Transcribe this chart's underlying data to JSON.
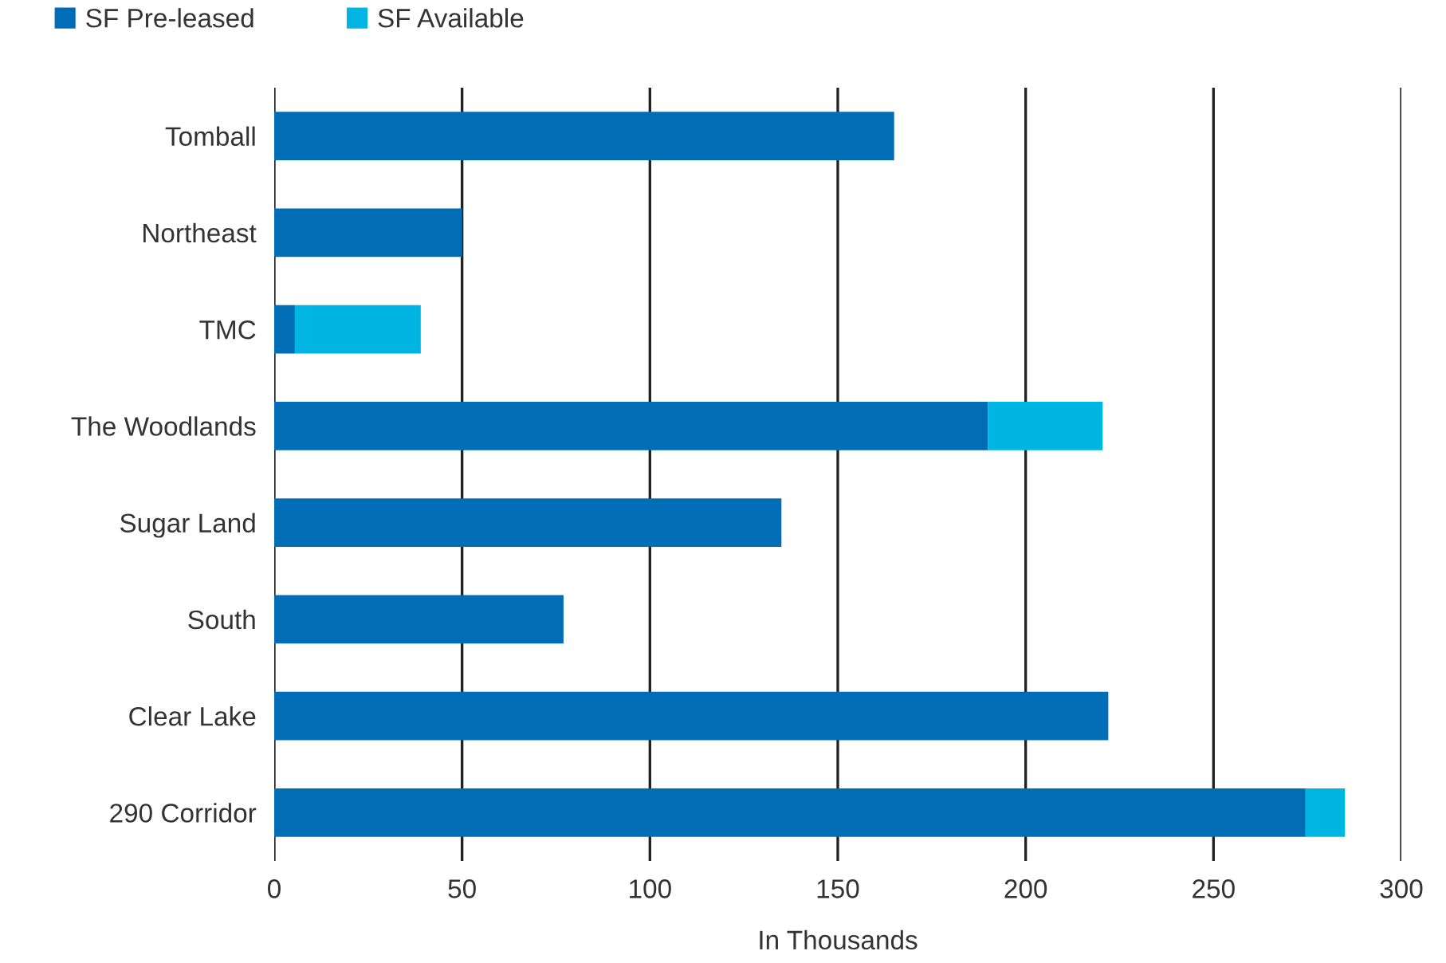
{
  "chart_data": {
    "type": "bar",
    "orientation": "horizontal",
    "stacked": true,
    "xlabel": "In Thousands",
    "categories": [
      "Tomball",
      "Northeast",
      "TMC",
      "The Woodlands",
      "Sugar Land",
      "South",
      "Clear Lake",
      "290 Corridor"
    ],
    "series": [
      {
        "name": "SF Pre-leased",
        "color": "#006db6",
        "values": [
          165,
          50,
          5.5,
          190,
          135,
          77,
          222,
          274.5
        ]
      },
      {
        "name": "SF Available",
        "color": "#00b5e2",
        "values": [
          0,
          0,
          33.5,
          30.5,
          0,
          0,
          0,
          10.5
        ]
      }
    ],
    "xlim": [
      0,
      300
    ],
    "xticks": [
      0,
      50,
      100,
      150,
      200,
      250,
      300
    ],
    "grid": "x",
    "legend": "top left"
  }
}
